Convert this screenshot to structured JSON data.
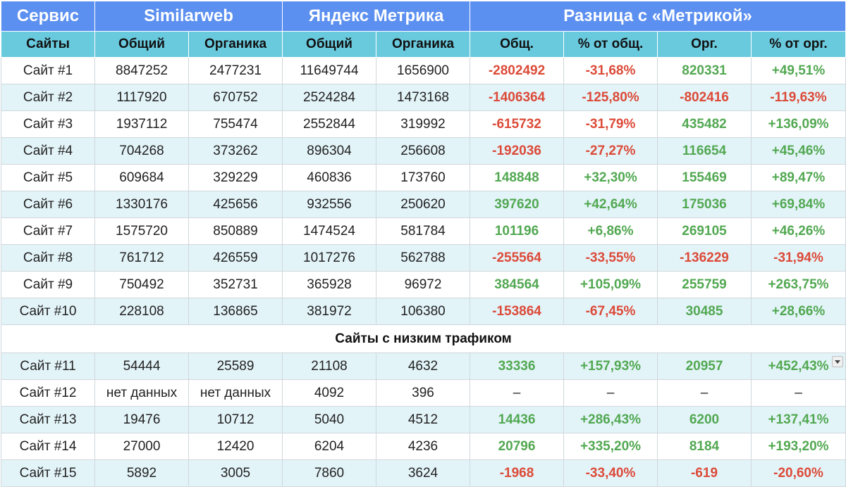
{
  "header": {
    "groups": [
      "Сервис",
      "Similarweb",
      "Яндекс Метрика",
      "Разница с «Метрикой»"
    ],
    "columns": [
      "Сайты",
      "Общий",
      "Органика",
      "Общий",
      "Органика",
      "Общ.",
      "% от общ.",
      "Орг.",
      "% от орг."
    ]
  },
  "colors": {
    "header_group_bg": "#5b8ff0",
    "header_col_bg": "#69c9dd",
    "positive": "#52a852",
    "negative": "#dc4a38",
    "stripe": "#e3f4f9"
  },
  "rows": [
    [
      "Сайт #1",
      "8847252",
      "2477231",
      "11649744",
      "1656900",
      "-2802492",
      "-31,68%",
      "820331",
      "+49,51%"
    ],
    [
      "Сайт #2",
      "1117920",
      "670752",
      "2524284",
      "1473168",
      "-1406364",
      "-125,80%",
      "-802416",
      "-119,63%"
    ],
    [
      "Сайт #3",
      "1937112",
      "755474",
      "2552844",
      "319992",
      "-615732",
      "-31,79%",
      "435482",
      "+136,09%"
    ],
    [
      "Сайт #4",
      "704268",
      "373262",
      "896304",
      "256608",
      "-192036",
      "-27,27%",
      "116654",
      "+45,46%"
    ],
    [
      "Сайт #5",
      "609684",
      "329229",
      "460836",
      "173760",
      "148848",
      "+32,30%",
      "155469",
      "+89,47%"
    ],
    [
      "Сайт #6",
      "1330176",
      "425656",
      "932556",
      "250620",
      "397620",
      "+42,64%",
      "175036",
      "+69,84%"
    ],
    [
      "Сайт #7",
      "1575720",
      "850889",
      "1474524",
      "581784",
      "101196",
      "+6,86%",
      "269105",
      "+46,26%"
    ],
    [
      "Сайт #8",
      "761712",
      "426559",
      "1017276",
      "562788",
      "-255564",
      "-33,55%",
      "-136229",
      "-31,94%"
    ],
    [
      "Сайт #9",
      "750492",
      "352731",
      "365928",
      "96972",
      "384564",
      "+105,09%",
      "255759",
      "+263,75%"
    ],
    [
      "Сайт #10",
      "228108",
      "136865",
      "381972",
      "106380",
      "-153864",
      "-67,45%",
      "30485",
      "+28,66%"
    ]
  ],
  "section_label": "Сайты с низким трафиком",
  "low_rows": [
    [
      "Сайт #11",
      "54444",
      "25589",
      "21108",
      "4632",
      "33336",
      "+157,93%",
      "20957",
      "+452,43%"
    ],
    [
      "Сайт #12",
      "нет данных",
      "нет данных",
      "4092",
      "396",
      "–",
      "–",
      "–",
      "–"
    ],
    [
      "Сайт #13",
      "19476",
      "10712",
      "5040",
      "4512",
      "14436",
      "+286,43%",
      "6200",
      "+137,41%"
    ],
    [
      "Сайт #14",
      "27000",
      "12420",
      "6204",
      "4236",
      "20796",
      "+335,20%",
      "8184",
      "+193,20%"
    ],
    [
      "Сайт #15",
      "5892",
      "3005",
      "7860",
      "3624",
      "-1968",
      "-33,40%",
      "-619",
      "-20,60%"
    ]
  ],
  "filter_dropdown_icon": "chevron-down-icon"
}
